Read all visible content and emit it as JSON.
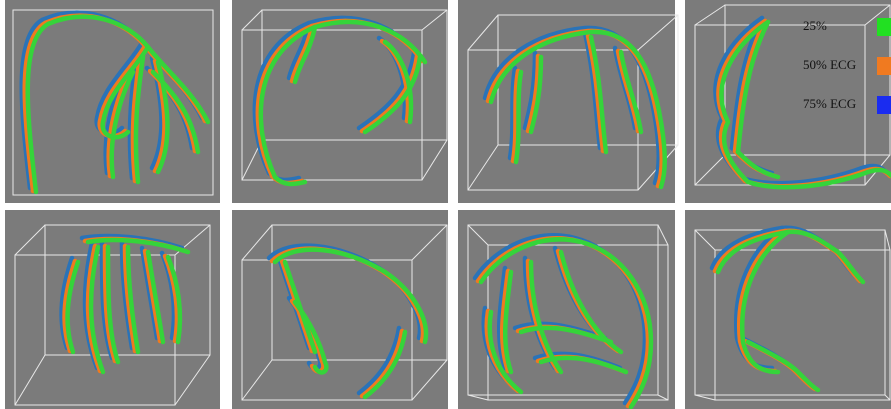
{
  "legend": {
    "items": [
      {
        "label": "25%",
        "color": "#22e022"
      },
      {
        "label": "50% ECG",
        "color": "#f07a20"
      },
      {
        "label": "75% ECG",
        "color": "#1a2cf0"
      }
    ]
  }
}
